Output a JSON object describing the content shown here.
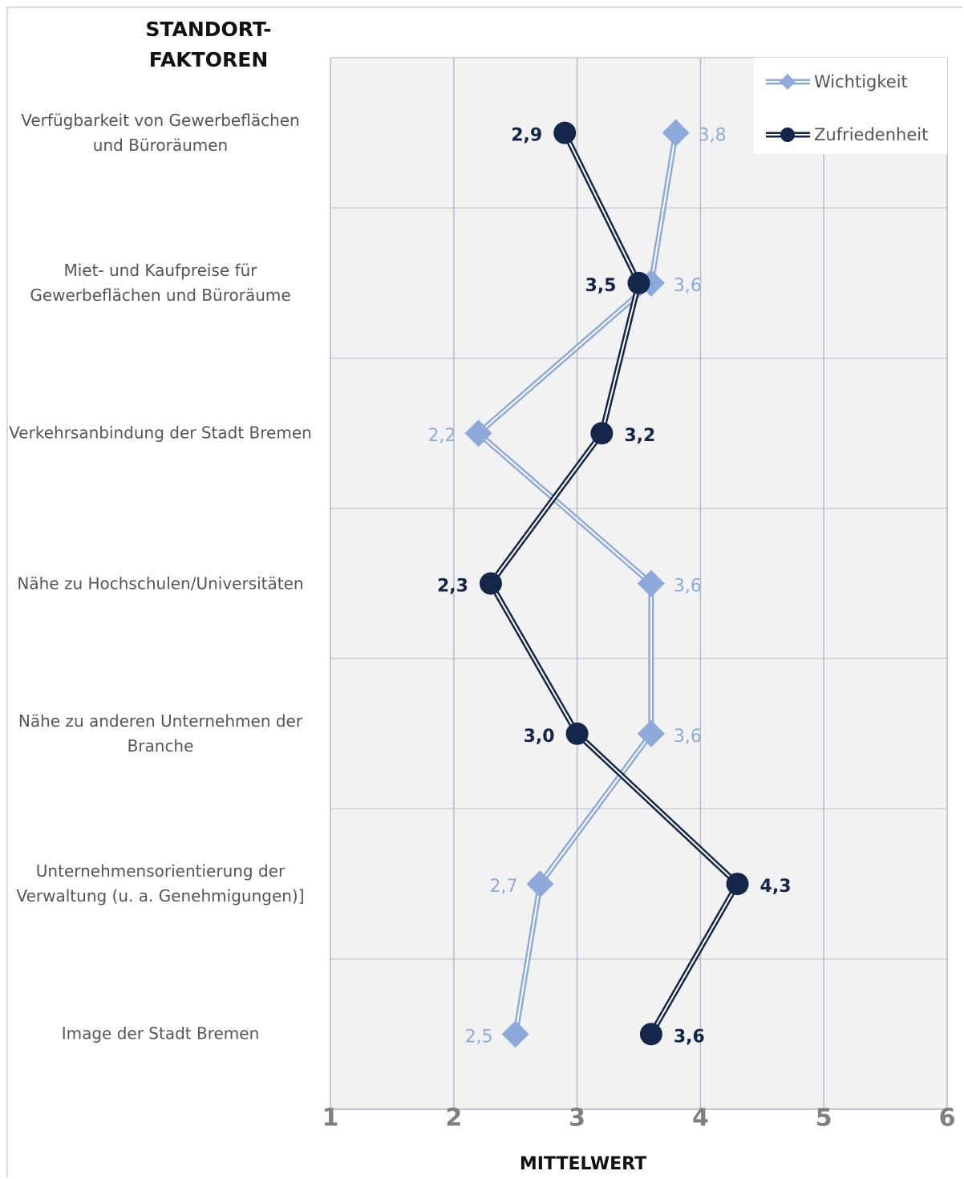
{
  "chart_data": {
    "type": "line",
    "title": "STANDORT-FAKTOREN",
    "xlabel": "MITTELWERT",
    "categories": [
      "Verfügbarkeit von Gewerbeflächen und Büroräumen",
      "Miet- und Kaufpreise für Gewerbeflächen und Büroräume",
      "Verkehrsanbindung der Stadt Bremen",
      "Nähe zu Hochschulen/Universitäten",
      "Nähe zu anderen Unternehmen der Branche",
      "Unternehmensorientierung der Verwaltung (u. a. Genehmigungen)]",
      "Image der Stadt Bremen"
    ],
    "series": [
      {
        "name": "Wichtigkeit",
        "color": "#8eaadb",
        "marker": "diamond",
        "values": [
          3.8,
          3.6,
          2.2,
          3.6,
          3.6,
          2.7,
          2.5
        ],
        "value_labels": [
          "3,8",
          "3,6",
          "2,2",
          "3,6",
          "3,6",
          "2,7",
          "2,5"
        ]
      },
      {
        "name": "Zufriedenheit",
        "color": "#14264a",
        "marker": "circle",
        "values": [
          2.9,
          3.5,
          3.2,
          2.3,
          3.0,
          4.3,
          3.6
        ],
        "value_labels": [
          "2,9",
          "3,5",
          "3,2",
          "2,3",
          "3,0",
          "4,3",
          "3,6"
        ]
      }
    ],
    "xlim": [
      1,
      6
    ],
    "xticks": [
      1,
      2,
      3,
      4,
      5,
      6
    ],
    "grid": true,
    "legend": "upper right"
  }
}
